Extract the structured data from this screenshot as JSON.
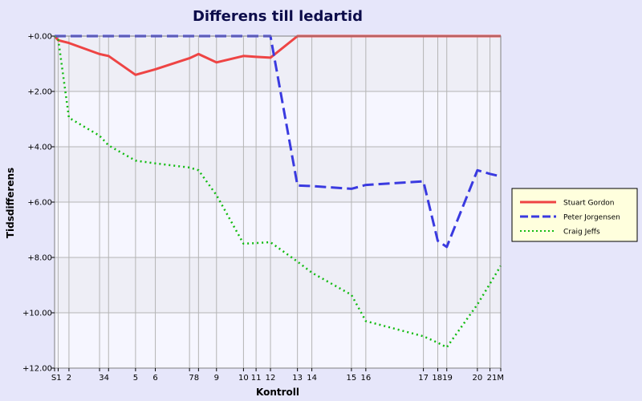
{
  "chart_data": {
    "type": "line",
    "title": "Differens till ledartid",
    "xlabel": "Kontroll",
    "ylabel": "Tidsdifferens",
    "ylim": [
      0,
      12
    ],
    "y_inverted": true,
    "grid": true,
    "legend_position": "right",
    "y_ticks": [
      "+0.00",
      "+2.00",
      "+4.00",
      "+6.00",
      "+8.00",
      "+10.00",
      "+12.00"
    ],
    "y_tick_values": [
      0,
      2,
      4,
      6,
      8,
      10,
      12
    ],
    "categories": [
      "S",
      "1",
      "2",
      "3",
      "4",
      "5",
      "6",
      "7",
      "8",
      "9",
      "10",
      "11",
      "12",
      "13",
      "14",
      "15",
      "16",
      "17",
      "18",
      "19",
      "20",
      "21",
      "M"
    ],
    "x": [
      0,
      0.4,
      1.6,
      5.0,
      6.0,
      9.0,
      11.2,
      15.0,
      16.0,
      18.0,
      21.0,
      22.4,
      24.0,
      27.0,
      28.6,
      33.0,
      34.6,
      41.0,
      42.6,
      43.6,
      47.0,
      48.4,
      49.6
    ],
    "series": [
      {
        "name": "Stuart Gordon",
        "color": "#ee4444",
        "style": "solid",
        "values": [
          0,
          0.15,
          0.25,
          0.65,
          0.72,
          1.4,
          1.2,
          0.8,
          0.65,
          0.95,
          0.72,
          0.75,
          0.78,
          0,
          0,
          0,
          0,
          0,
          0,
          0,
          0,
          0,
          0
        ]
      },
      {
        "name": "Peter Jorgensen",
        "color": "#3a3ae0",
        "style": "dashed",
        "values": [
          0,
          0,
          0,
          0,
          0,
          0,
          0,
          0,
          0,
          0,
          0,
          0,
          0,
          5.4,
          5.42,
          5.52,
          5.38,
          5.25,
          7.4,
          7.62,
          4.85,
          4.98,
          5.07
        ]
      },
      {
        "name": "Craig Jeffs",
        "color": "#11bb11",
        "style": "dotted",
        "values": [
          0,
          0.1,
          2.95,
          3.6,
          3.95,
          4.5,
          4.6,
          4.75,
          4.85,
          5.75,
          7.5,
          7.48,
          7.45,
          8.15,
          8.55,
          9.35,
          10.3,
          10.85,
          11.08,
          11.25,
          9.7,
          8.95,
          8.3
        ]
      }
    ]
  }
}
